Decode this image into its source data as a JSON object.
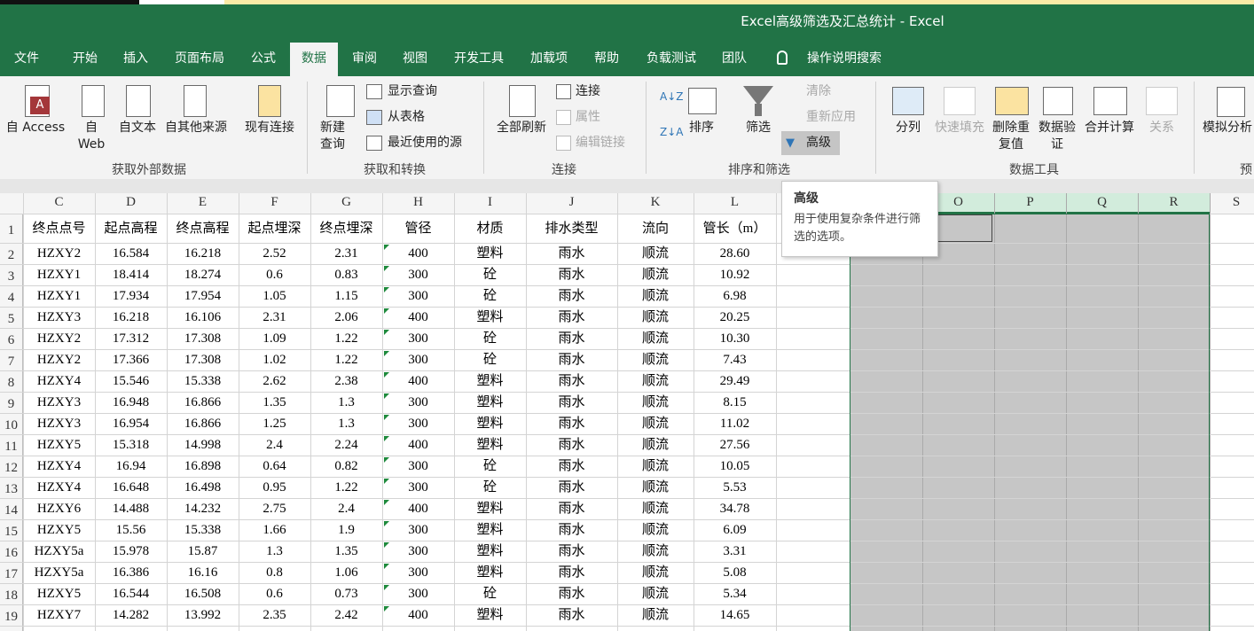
{
  "window": {
    "title": "Excel高级筛选及汇总统计  -  Excel"
  },
  "tabs": [
    "文件",
    "开始",
    "插入",
    "页面布局",
    "公式",
    "数据",
    "审阅",
    "视图",
    "开发工具",
    "加载项",
    "帮助",
    "负载测试",
    "团队"
  ],
  "search": "操作说明搜索",
  "ribbon": {
    "external": {
      "label": "获取外部数据",
      "buttons": [
        "自 Access",
        "自 Web",
        "自文本",
        "自其他来源",
        "现有连接"
      ]
    },
    "transform": {
      "label": "获取和转换",
      "buttons": [
        "新建查询",
        "显示查询",
        "从表格",
        "最近使用的源"
      ]
    },
    "connections": {
      "label": "连接",
      "buttons": [
        "全部刷新",
        "连接",
        "属性",
        "编辑链接"
      ]
    },
    "sort_filter": {
      "label": "排序和筛选",
      "buttons": [
        "排序",
        "筛选",
        "清除",
        "重新应用",
        "高级"
      ]
    },
    "data_tools": {
      "label": "数据工具",
      "buttons": [
        "分列",
        "快速填充",
        "删除重复值",
        "数据验证",
        "合并计算",
        "关系"
      ]
    },
    "forecast": {
      "label": "预",
      "buttons": [
        "模拟分析"
      ]
    }
  },
  "tooltip": {
    "title": "高级",
    "text": "用于使用复杂条件进行筛选的选项。"
  },
  "sheet": {
    "columns": [
      "C",
      "D",
      "E",
      "F",
      "G",
      "H",
      "I",
      "J",
      "K",
      "L"
    ],
    "extra_columns": [
      "O",
      "P",
      "Q",
      "R",
      "S"
    ],
    "row_numbers": [
      1,
      2,
      3,
      4,
      5,
      6,
      7,
      8,
      9,
      10,
      11,
      12,
      13,
      14,
      15,
      16,
      17,
      18,
      19
    ],
    "rows": [
      [
        "终点点号",
        "起点高程",
        "终点高程",
        "起点埋深",
        "终点埋深",
        "管径",
        "材质",
        "排水类型",
        "流向",
        "管长（m）"
      ],
      [
        "HZXY2",
        "16.584",
        "16.218",
        "2.52",
        "2.31",
        "400",
        "塑料",
        "雨水",
        "顺流",
        "28.60"
      ],
      [
        "HZXY1",
        "18.414",
        "18.274",
        "0.6",
        "0.83",
        "300",
        "砼",
        "雨水",
        "顺流",
        "10.92"
      ],
      [
        "HZXY1",
        "17.934",
        "17.954",
        "1.05",
        "1.15",
        "300",
        "砼",
        "雨水",
        "顺流",
        "6.98"
      ],
      [
        "HZXY3",
        "16.218",
        "16.106",
        "2.31",
        "2.06",
        "400",
        "塑料",
        "雨水",
        "顺流",
        "20.25"
      ],
      [
        "HZXY2",
        "17.312",
        "17.308",
        "1.09",
        "1.22",
        "300",
        "砼",
        "雨水",
        "顺流",
        "10.30"
      ],
      [
        "HZXY2",
        "17.366",
        "17.308",
        "1.02",
        "1.22",
        "300",
        "砼",
        "雨水",
        "顺流",
        "7.43"
      ],
      [
        "HZXY4",
        "15.546",
        "15.338",
        "2.62",
        "2.38",
        "400",
        "塑料",
        "雨水",
        "顺流",
        "29.49"
      ],
      [
        "HZXY3",
        "16.948",
        "16.866",
        "1.35",
        "1.3",
        "300",
        "塑料",
        "雨水",
        "顺流",
        "8.15"
      ],
      [
        "HZXY3",
        "16.954",
        "16.866",
        "1.25",
        "1.3",
        "300",
        "塑料",
        "雨水",
        "顺流",
        "11.02"
      ],
      [
        "HZXY5",
        "15.318",
        "14.998",
        "2.4",
        "2.24",
        "400",
        "塑料",
        "雨水",
        "顺流",
        "27.56"
      ],
      [
        "HZXY4",
        "16.94",
        "16.898",
        "0.64",
        "0.82",
        "300",
        "砼",
        "雨水",
        "顺流",
        "10.05"
      ],
      [
        "HZXY4",
        "16.648",
        "16.498",
        "0.95",
        "1.22",
        "300",
        "砼",
        "雨水",
        "顺流",
        "5.53"
      ],
      [
        "HZXY6",
        "14.488",
        "14.232",
        "2.75",
        "2.4",
        "400",
        "塑料",
        "雨水",
        "顺流",
        "34.78"
      ],
      [
        "HZXY5",
        "15.56",
        "15.338",
        "1.66",
        "1.9",
        "300",
        "塑料",
        "雨水",
        "顺流",
        "6.09"
      ],
      [
        "HZXY5a",
        "15.978",
        "15.87",
        "1.3",
        "1.35",
        "300",
        "塑料",
        "雨水",
        "顺流",
        "3.31"
      ],
      [
        "HZXY5a",
        "16.386",
        "16.16",
        "0.8",
        "1.06",
        "300",
        "塑料",
        "雨水",
        "顺流",
        "5.08"
      ],
      [
        "HZXY5",
        "16.544",
        "16.508",
        "0.6",
        "0.73",
        "300",
        "砼",
        "雨水",
        "顺流",
        "5.34"
      ],
      [
        "HZXY7",
        "14.282",
        "13.992",
        "2.35",
        "2.42",
        "400",
        "塑料",
        "雨水",
        "顺流",
        "14.65"
      ]
    ]
  }
}
